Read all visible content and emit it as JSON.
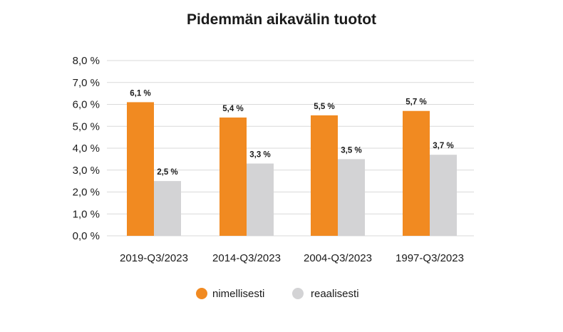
{
  "chart_data": {
    "type": "bar",
    "title": "Pidemmän aikavälin tuotot",
    "xlabel": "",
    "ylabel": "",
    "categories": [
      "2019-Q3/2023",
      "2014-Q3/2023",
      "2004-Q3/2023",
      "1997-Q3/2023"
    ],
    "series": [
      {
        "name": "nimellisesti",
        "color": "#f18a21",
        "values": [
          6.1,
          5.4,
          5.5,
          5.7
        ],
        "labels": [
          "6,1 %",
          "5,4 %",
          "5,5 %",
          "5,7 %"
        ]
      },
      {
        "name": "reaalisesti",
        "color": "#d3d3d5",
        "values": [
          2.5,
          3.3,
          3.5,
          3.7
        ],
        "labels": [
          "2,5 %",
          "3,3 %",
          "3,5 %",
          "3,7 %"
        ]
      }
    ],
    "ylim": [
      0,
      8
    ],
    "yticks": [
      0,
      1,
      2,
      3,
      4,
      5,
      6,
      7,
      8
    ],
    "ytick_labels": [
      "0,0 %",
      "1,0 %",
      "2,0 %",
      "3,0 %",
      "4,0 %",
      "5,0 %",
      "6,0 %",
      "7,0 %",
      "8,0 %"
    ],
    "grid": true,
    "gridline_color": "#d9d9d9",
    "legend_position": "bottom-center"
  }
}
